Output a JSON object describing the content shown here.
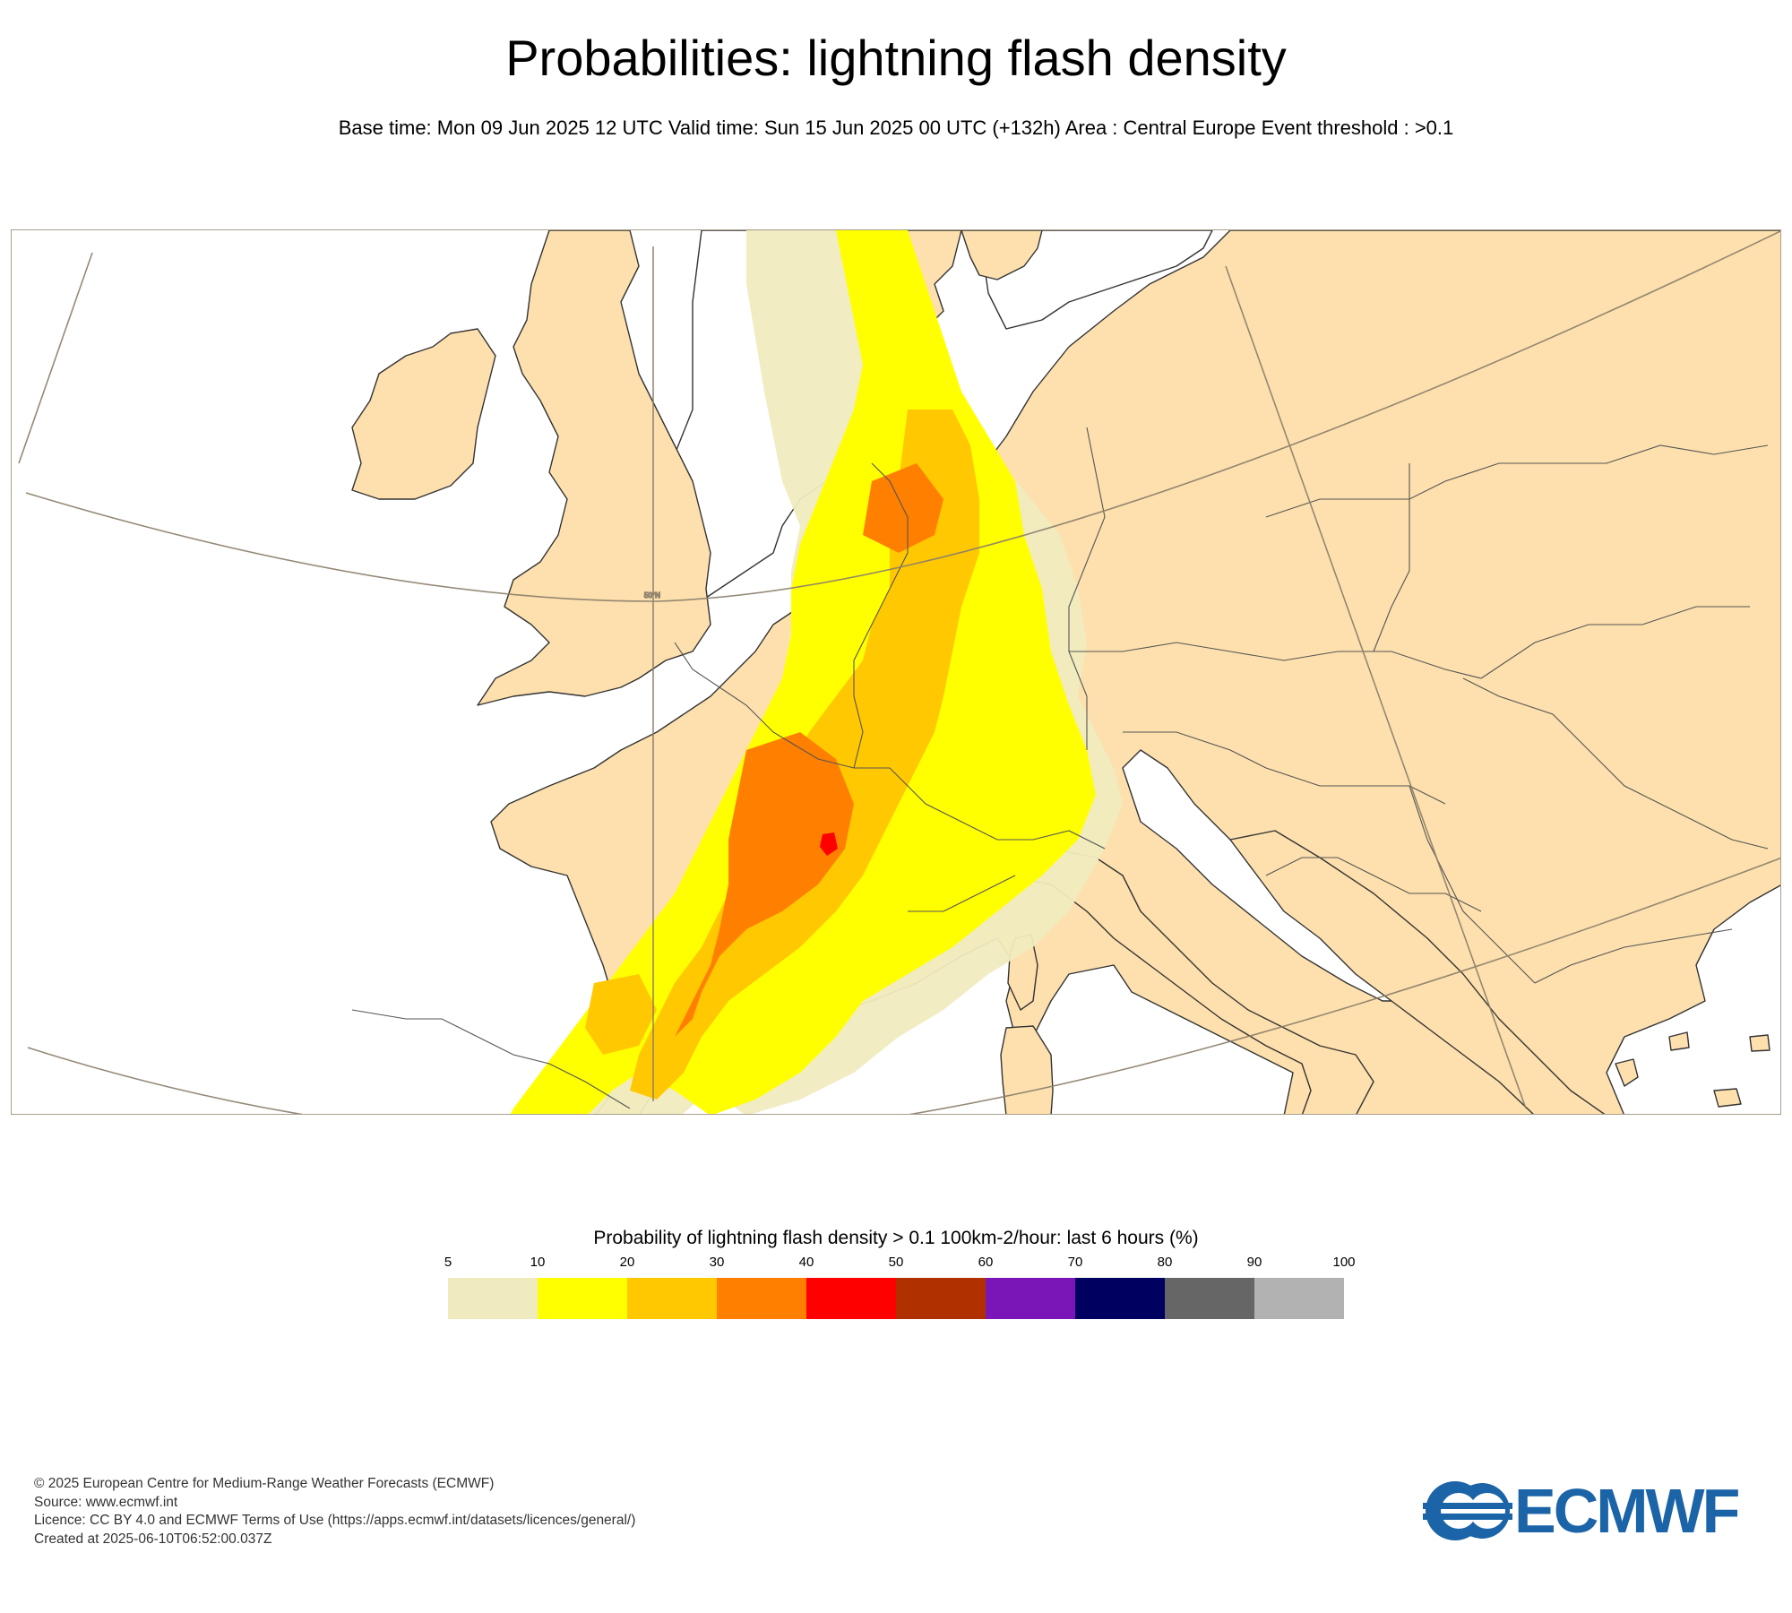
{
  "title": "Probabilities: lightning flash density",
  "subtitle": "Base time: Mon 09 Jun 2025 12 UTC Valid time: Sun 15 Jun 2025 00 UTC (+132h) Area : Central Europe Event threshold : >0.1",
  "map": {
    "parallel_label": "50°N",
    "land_color": "#fde0ad",
    "sea_color": "#ffffff",
    "coast_color": "#333333",
    "border_color": "#555555",
    "graticule_color": "#8a7d6a"
  },
  "legend": {
    "title": "Probability of lightning flash density > 0.1 100km-2/hour: last 6 hours (%)",
    "ticks": [
      "5",
      "10",
      "20",
      "30",
      "40",
      "50",
      "60",
      "70",
      "80",
      "90",
      "100"
    ],
    "colors": [
      "#f0ebbf",
      "#ffff00",
      "#ffc800",
      "#ff7f00",
      "#ff0000",
      "#b03000",
      "#7a15b8",
      "#000060",
      "#666666",
      "#b2b2b2"
    ]
  },
  "footer": {
    "line1": "© 2025 European Centre for Medium-Range Weather Forecasts (ECMWF)",
    "line2": "Source: www.ecmwf.int",
    "line3": "Licence: CC BY 4.0 and ECMWF Terms of Use (https://apps.ecmwf.int/datasets/licences/general/)",
    "line4": "Created at 2025-06-10T06:52:00.037Z"
  },
  "logo": {
    "text": "ECMWF",
    "color": "#1b64a7"
  }
}
